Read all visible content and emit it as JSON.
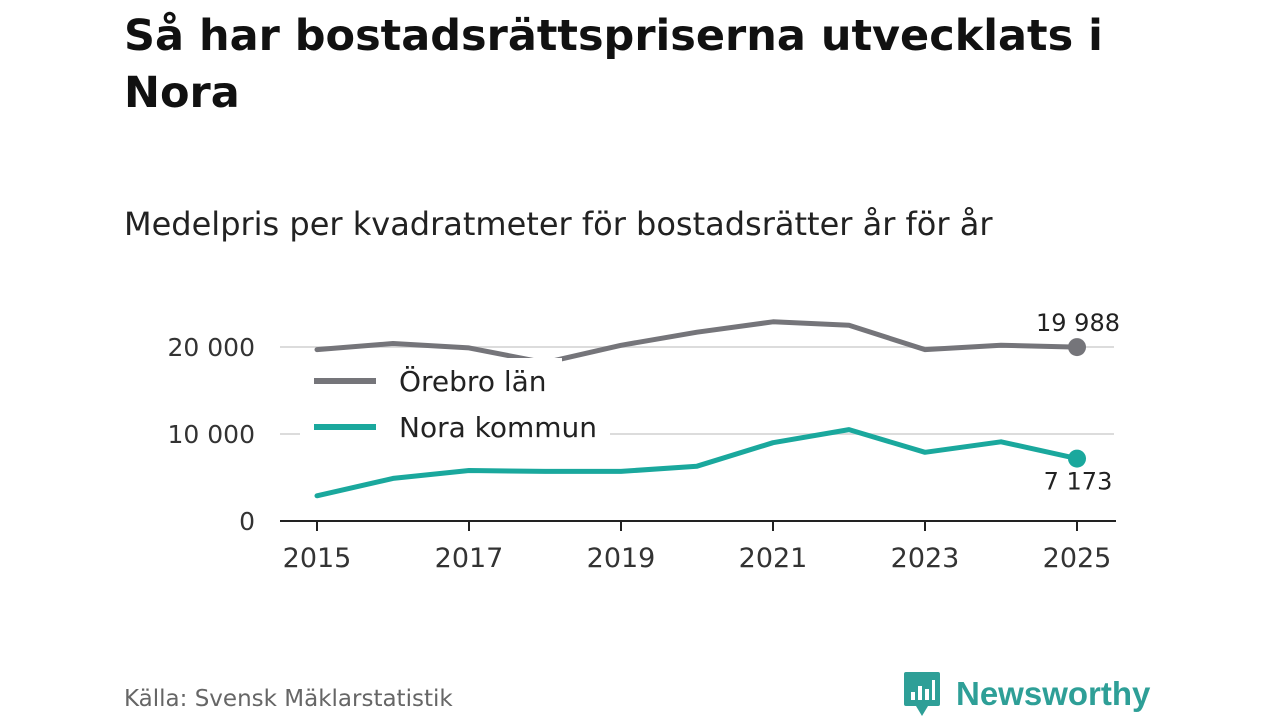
{
  "title": "Så har bostadsrättspriserna utvecklats i Nora",
  "subtitle": "Medelpris per kvadratmeter för bostadsrätter år för år",
  "source": "Källa: Svensk Mäklarstatistik",
  "brand": "Newsworthy",
  "colors": {
    "orebro": "#75757a",
    "nora": "#1aa89d",
    "grid": "#dcdcdc",
    "axis": "#222222",
    "brand": "#2e9f97"
  },
  "chart_data": {
    "type": "line",
    "x": [
      2015,
      2016,
      2017,
      2018,
      2019,
      2020,
      2021,
      2022,
      2023,
      2024,
      2025
    ],
    "x_tick_labels": [
      "2015",
      "2017",
      "2019",
      "2021",
      "2023",
      "2025"
    ],
    "y_ticks": [
      0,
      10000,
      20000
    ],
    "y_tick_labels": [
      "0",
      "10 000",
      "20 000"
    ],
    "ylim": [
      0,
      22000
    ],
    "legend_position": "top-left",
    "series": [
      {
        "name": "Örebro län",
        "values": [
          19700,
          20400,
          19900,
          18200,
          20200,
          21700,
          22900,
          22500,
          19700,
          20200,
          19988
        ],
        "end_label": "19 988"
      },
      {
        "name": "Nora kommun",
        "values": [
          2900,
          4900,
          5800,
          5700,
          5700,
          6300,
          9000,
          10500,
          7900,
          9100,
          7173
        ],
        "end_label": "7 173"
      }
    ]
  }
}
